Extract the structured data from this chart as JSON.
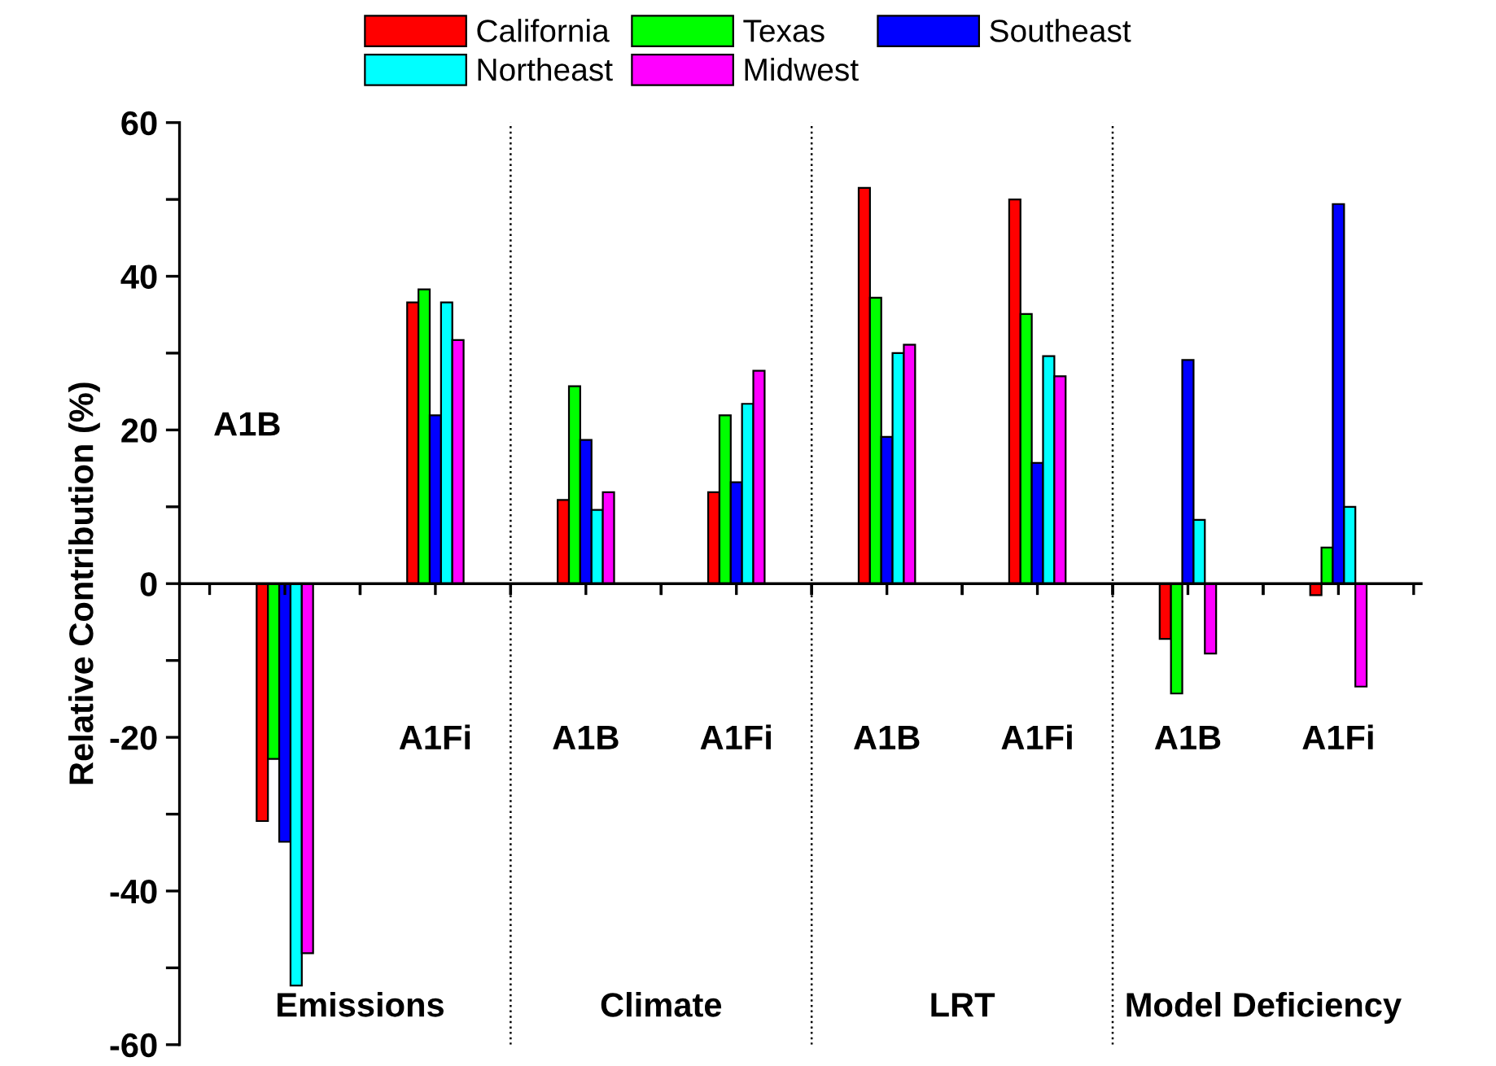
{
  "chart_data": {
    "type": "bar",
    "ylabel": "Relative Contribution (%)",
    "categories": [
      "A1B",
      "A1Fi",
      "A1B",
      "A1Fi",
      "A1B",
      "A1Fi",
      "A1B",
      "A1Fi"
    ],
    "series": [
      {
        "name": "California",
        "color": "#ff0000",
        "values": [
          -30.9,
          36.6,
          10.9,
          11.9,
          51.5,
          50.0,
          -7.2,
          -1.5
        ]
      },
      {
        "name": "Texas",
        "color": "#00ff00",
        "values": [
          -22.8,
          38.3,
          25.7,
          21.9,
          37.2,
          35.1,
          -14.3,
          4.7
        ]
      },
      {
        "name": "Southeast",
        "color": "#0000ff",
        "values": [
          -33.6,
          21.9,
          18.7,
          13.2,
          19.1,
          15.7,
          29.1,
          49.4
        ]
      },
      {
        "name": "Northeast",
        "color": "#00ffff",
        "values": [
          -52.3,
          36.6,
          9.6,
          23.4,
          30.0,
          29.6,
          8.3,
          10.0
        ]
      },
      {
        "name": "Midwest",
        "color": "#ff00ff",
        "values": [
          -48.1,
          31.7,
          11.9,
          27.7,
          31.1,
          27.0,
          -9.1,
          -13.4
        ]
      }
    ],
    "ylim": [
      -60,
      60
    ],
    "yticks": [
      -60,
      {
        "value": -50,
        "label": null
      },
      -40,
      {
        "value": -30,
        "label": null
      },
      -20,
      {
        "value": -10,
        "label": null
      },
      0,
      {
        "value": 10,
        "label": null
      },
      20,
      {
        "value": 30,
        "label": null
      },
      40,
      {
        "value": 50,
        "label": null
      },
      60
    ],
    "annotations": [
      "Emissions",
      "Climate",
      "LRT",
      "Model Deficiency"
    ],
    "grid": false,
    "legend": "top"
  }
}
